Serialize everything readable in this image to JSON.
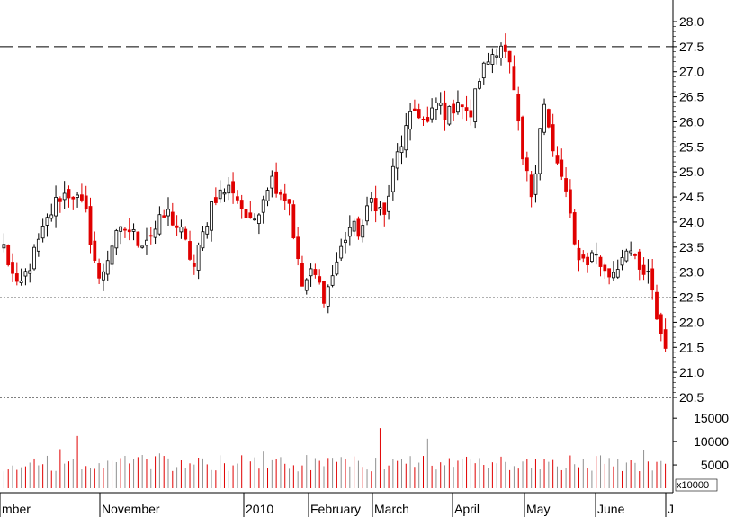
{
  "chart_data": {
    "type": "candlestick",
    "price_axis": {
      "ylim": [
        20.5,
        28.0
      ],
      "ticks": [
        "28.0",
        "27.5",
        "27.0",
        "26.5",
        "26.0",
        "25.5",
        "25.0",
        "24.5",
        "24.0",
        "23.5",
        "23.0",
        "22.5",
        "22.0",
        "21.5",
        "21.0",
        "20.5"
      ]
    },
    "volume_axis": {
      "ylim": [
        0,
        16000
      ],
      "ticks": [
        "15000",
        "10000",
        "5000"
      ],
      "unit_label": "x10000"
    },
    "x_axis": {
      "labels": [
        "mber",
        "November",
        "2010",
        "February",
        "March",
        "April",
        "May",
        "June",
        "J"
      ]
    },
    "reference_lines": [
      {
        "value": 27.5,
        "style": "dashed",
        "color": "#000000"
      },
      {
        "value": 22.5,
        "style": "dotted",
        "color": "#b0b0b0"
      },
      {
        "value": 20.5,
        "style": "dotted",
        "color": "#000000"
      }
    ],
    "colors": {
      "up": "#000000",
      "down": "#e00000",
      "volume": "#e00000",
      "grid": "#000000"
    },
    "segments": [
      {
        "n": 22,
        "y": [
          23.5,
          22.6,
          23.2,
          23.9,
          24.5,
          24.6,
          24.2,
          22.8
        ]
      },
      {
        "n": 22,
        "y": [
          22.8,
          23.6,
          23.9,
          23.6,
          23.8,
          24.2,
          23.8,
          23.1
        ]
      },
      {
        "n": 22,
        "y": [
          23.1,
          24.5,
          24.7,
          23.9,
          24.9,
          24.4
        ]
      },
      {
        "n": 22,
        "y": [
          24.4,
          22.7,
          23.0,
          22.5,
          23.2,
          23.9,
          23.8,
          24.5,
          24.1
        ]
      },
      {
        "n": 22,
        "y": [
          24.1,
          25.2,
          25.8,
          26.3,
          25.9,
          26.4,
          26.1,
          26.5,
          26.0,
          26.9
        ]
      },
      {
        "n": 22,
        "y": [
          26.9,
          27.3,
          27.6,
          27.0,
          25.3,
          24.5,
          26.5,
          25.3,
          24.8,
          23.5
        ]
      },
      {
        "n": 22,
        "y": [
          23.5,
          23.2,
          23.4,
          22.9,
          23.1,
          23.6,
          23.0,
          22.9,
          21.9,
          21.2
        ]
      }
    ],
    "volume_seed": 6000
  }
}
